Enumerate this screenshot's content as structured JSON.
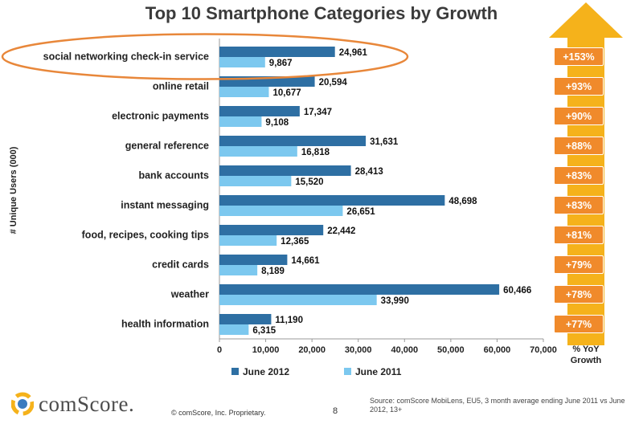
{
  "chart_data": {
    "type": "bar",
    "orientation": "horizontal",
    "title": "Top 10 Smartphone Categories by Growth",
    "ylabel": "# Unique Users (000)",
    "xlabel": "",
    "xlim": [
      0,
      70000
    ],
    "xticks": [
      "0",
      "10,000",
      "20,000",
      "30,000",
      "40,000",
      "50,000",
      "60,000",
      "70,000"
    ],
    "xtick_values": [
      0,
      10000,
      20000,
      30000,
      40000,
      50000,
      60000,
      70000
    ],
    "categories": [
      "social networking check-in service",
      "online retail",
      "electronic payments",
      "general reference",
      "bank accounts",
      "instant messaging",
      "food, recipes, cooking tips",
      "credit cards",
      "weather",
      "health information"
    ],
    "series": [
      {
        "name": "June 2012",
        "color": "#2e6fa3",
        "values": [
          24961,
          20594,
          17347,
          31631,
          28413,
          48698,
          22442,
          14661,
          60466,
          11190
        ],
        "labels": [
          "24,961",
          "20,594",
          "17,347",
          "31,631",
          "28,413",
          "48,698",
          "22,442",
          "14,661",
          "60,466",
          "11,190"
        ]
      },
      {
        "name": "June 2011",
        "color": "#7cc8ef",
        "values": [
          9867,
          10677,
          9108,
          16818,
          15520,
          26651,
          12365,
          8189,
          33990,
          6315
        ],
        "labels": [
          "9,867",
          "10,677",
          "9,108",
          "16,818",
          "15,520",
          "26,651",
          "12,365",
          "8,189",
          "33,990",
          "6,315"
        ]
      }
    ],
    "growth": [
      "+153%",
      "+93%",
      "+90%",
      "+88%",
      "+83%",
      "+83%",
      "+81%",
      "+79%",
      "+78%",
      "+77%"
    ],
    "growth_label_line1": "% YoY",
    "growth_label_line2": "Growth",
    "highlighted_category": "social networking check-in service",
    "legend_position": "bottom",
    "colors": {
      "growth_box": "#f08a2b",
      "arrow": "#f5b21b",
      "highlight_ellipse": "#e8873a"
    }
  },
  "footer": {
    "brand": "comScore.",
    "copyright": "© comScore, Inc.    Proprietary.",
    "page_number": "8",
    "source": "Source: comScore MobiLens, EU5, 3 month average ending June 2011 vs June 2012, 13+"
  }
}
